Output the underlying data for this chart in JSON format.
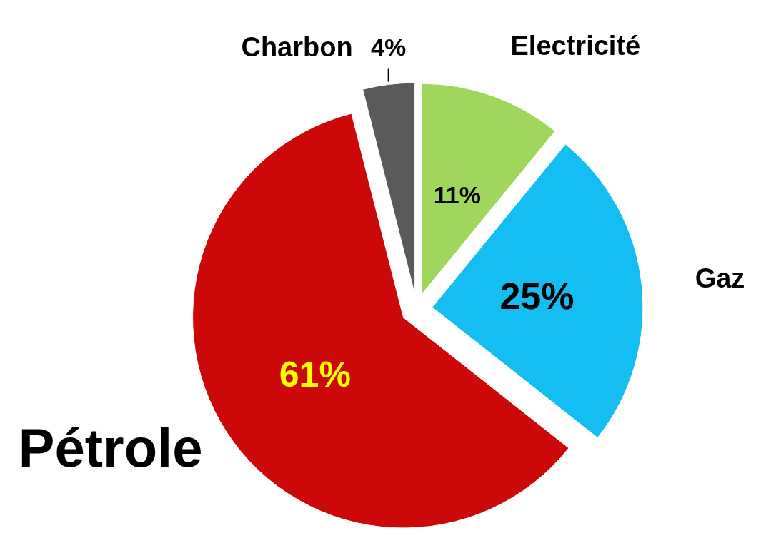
{
  "chart_data": {
    "type": "pie",
    "categories": [
      "Electricité",
      "Gaz",
      "Pétrole",
      "Charbon"
    ],
    "values": [
      11,
      25,
      61,
      4
    ],
    "colors": [
      "#9fd65c",
      "#14bdf2",
      "#cc0808",
      "#5a5a5a"
    ],
    "value_labels": [
      "11%",
      "25%",
      "61%",
      "4%"
    ]
  }
}
